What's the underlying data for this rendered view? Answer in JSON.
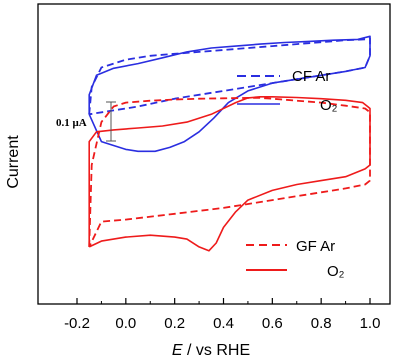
{
  "chart_data": {
    "type": "line",
    "xlabel_italic": "E",
    "xlabel_rest": " / vs RHE",
    "ylabel": "Current",
    "xlim": [
      -0.25,
      1.05
    ],
    "x_ticks": [
      -0.2,
      0.0,
      0.2,
      0.4,
      0.6,
      0.8,
      1.0
    ],
    "x_tick_labels": [
      "-0.2",
      "0.0",
      "0.2",
      "0.4",
      "0.6",
      "0.8",
      "1.0"
    ],
    "scale_bar": {
      "label": "0.1 μA",
      "value_uA": 0.1
    },
    "panels": [
      {
        "name": "CF",
        "color": "#2a2ee0",
        "series": [
          {
            "legend": "CF Ar",
            "style": "dashed",
            "x": [
              -0.15,
              -0.14,
              -0.1,
              0.0,
              0.1,
              0.2,
              0.3,
              0.4,
              0.5,
              0.6,
              0.7,
              0.8,
              0.9,
              0.98,
              1.0,
              1.0,
              0.98,
              0.9,
              0.8,
              0.6,
              0.4,
              0.2,
              0.05,
              -0.05,
              -0.15
            ],
            "y": [
              0.03,
              0.1,
              0.15,
              0.17,
              0.18,
              0.185,
              0.19,
              0.195,
              0.2,
              0.205,
              0.21,
              0.215,
              0.22,
              0.222,
              0.225,
              0.18,
              0.15,
              0.14,
              0.13,
              0.11,
              0.09,
              0.07,
              0.05,
              0.04,
              0.03
            ]
          },
          {
            "legend": "O₂",
            "style": "solid",
            "x": [
              -0.15,
              -0.15,
              -0.12,
              -0.05,
              0.05,
              0.15,
              0.25,
              0.35,
              0.45,
              0.55,
              0.65,
              0.75,
              0.85,
              0.95,
              1.0,
              1.0,
              0.98,
              0.9,
              0.8,
              0.7,
              0.6,
              0.5,
              0.42,
              0.36,
              0.3,
              0.24,
              0.18,
              0.12,
              0.05,
              0.0,
              -0.05,
              -0.1,
              -0.15
            ],
            "y": [
              0.03,
              0.08,
              0.13,
              0.148,
              0.16,
              0.175,
              0.19,
              0.2,
              0.205,
              0.21,
              0.214,
              0.217,
              0.22,
              0.222,
              0.23,
              0.18,
              0.15,
              0.14,
              0.13,
              0.12,
              0.11,
              0.09,
              0.06,
              0.02,
              -0.015,
              -0.04,
              -0.055,
              -0.065,
              -0.065,
              -0.06,
              -0.05,
              -0.04,
              0.03
            ]
          }
        ]
      },
      {
        "name": "GF",
        "color": "#ee1b1b",
        "series": [
          {
            "legend": "GF Ar",
            "style": "dashed",
            "x": [
              -0.15,
              -0.14,
              -0.1,
              -0.05,
              0.0,
              0.1,
              0.2,
              0.3,
              0.4,
              0.5,
              0.55,
              0.6,
              0.7,
              0.8,
              0.9,
              0.98,
              1.0,
              1.0,
              0.98,
              0.9,
              0.8,
              0.6,
              0.4,
              0.2,
              0.0,
              -0.1,
              -0.15
            ],
            "y": [
              -0.31,
              -0.1,
              0.01,
              0.05,
              0.06,
              0.065,
              0.068,
              0.07,
              0.071,
              0.072,
              0.072,
              0.07,
              0.065,
              0.06,
              0.052,
              0.045,
              0.035,
              -0.14,
              -0.15,
              -0.16,
              -0.17,
              -0.19,
              -0.21,
              -0.225,
              -0.24,
              -0.245,
              -0.31
            ]
          },
          {
            "legend": "O₂",
            "style": "solid",
            "x": [
              -0.15,
              -0.15,
              -0.12,
              -0.05,
              0.05,
              0.15,
              0.25,
              0.35,
              0.45,
              0.5,
              0.55,
              0.6,
              0.7,
              0.8,
              0.9,
              0.97,
              0.99,
              1.0,
              1.0,
              0.98,
              0.9,
              0.8,
              0.7,
              0.6,
              0.5,
              0.45,
              0.4,
              0.37,
              0.34,
              0.3,
              0.25,
              0.2,
              0.1,
              0.0,
              -0.1,
              -0.15
            ],
            "y": [
              -0.31,
              -0.04,
              -0.015,
              -0.01,
              -0.005,
              0.0,
              0.01,
              0.03,
              0.06,
              0.072,
              0.075,
              0.075,
              0.073,
              0.07,
              0.066,
              0.06,
              0.05,
              0.045,
              -0.1,
              -0.11,
              -0.13,
              -0.14,
              -0.15,
              -0.165,
              -0.19,
              -0.22,
              -0.26,
              -0.3,
              -0.32,
              -0.31,
              -0.29,
              -0.285,
              -0.28,
              -0.285,
              -0.295,
              -0.31
            ]
          }
        ]
      }
    ]
  }
}
